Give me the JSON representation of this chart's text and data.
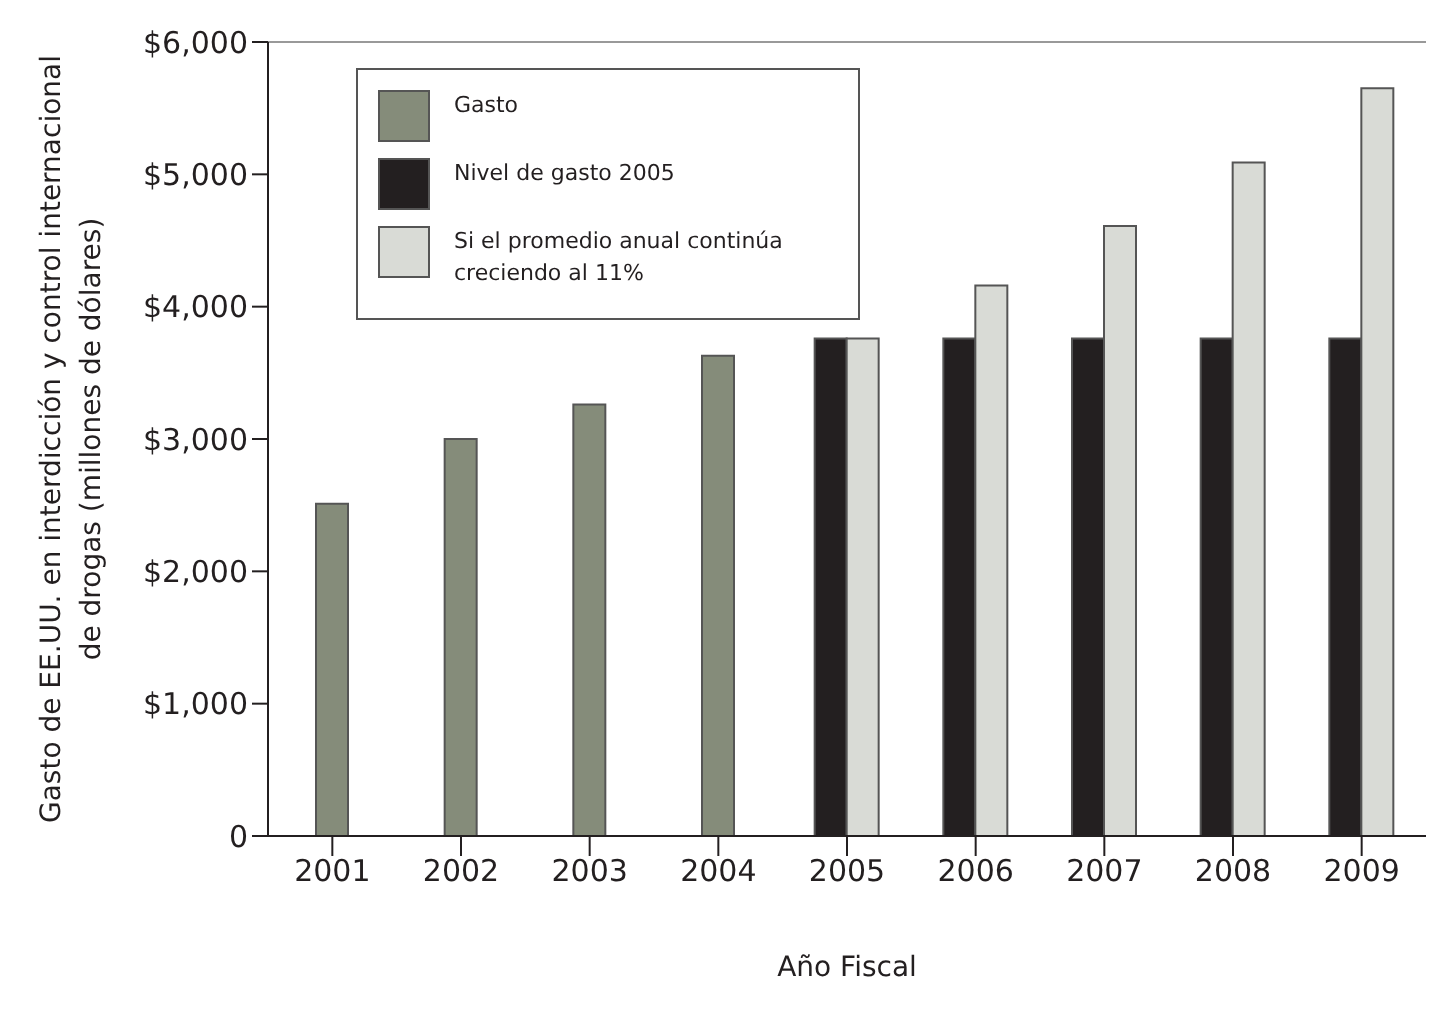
{
  "chart_data": {
    "type": "bar",
    "xlabel": "Año Fiscal",
    "ylabel": "Gasto de EE.UU. en interdicción y control internacional\nde drogas (millones de dólares)",
    "categories": [
      "2001",
      "2002",
      "2003",
      "2004",
      "2005",
      "2006",
      "2007",
      "2008",
      "2009"
    ],
    "series": [
      {
        "name": "Gasto",
        "color": "#858c7a",
        "values": [
          2510,
          3000,
          3260,
          3630,
          null,
          null,
          null,
          null,
          null
        ]
      },
      {
        "name": "Nivel de gasto 2005",
        "color": "#231f20",
        "values": [
          null,
          null,
          null,
          null,
          3760,
          3760,
          3760,
          3760,
          3760
        ]
      },
      {
        "name": "Si el promedio anual continúa creciendo al 11%",
        "color": "#d9dbd6",
        "values": [
          null,
          null,
          null,
          null,
          3760,
          4160,
          4610,
          5090,
          5650
        ]
      }
    ],
    "ylim": [
      0,
      6000
    ],
    "yticks": [
      {
        "value": 0,
        "label": "0"
      },
      {
        "value": 1000,
        "label": "$1,000"
      },
      {
        "value": 2000,
        "label": "$2,000"
      },
      {
        "value": 3000,
        "label": "$3,000"
      },
      {
        "value": 4000,
        "label": "$4,000"
      },
      {
        "value": 5000,
        "label": "$5,000"
      },
      {
        "value": 6000,
        "label": "$6,000"
      }
    ],
    "grid": false,
    "legend": "top left"
  }
}
